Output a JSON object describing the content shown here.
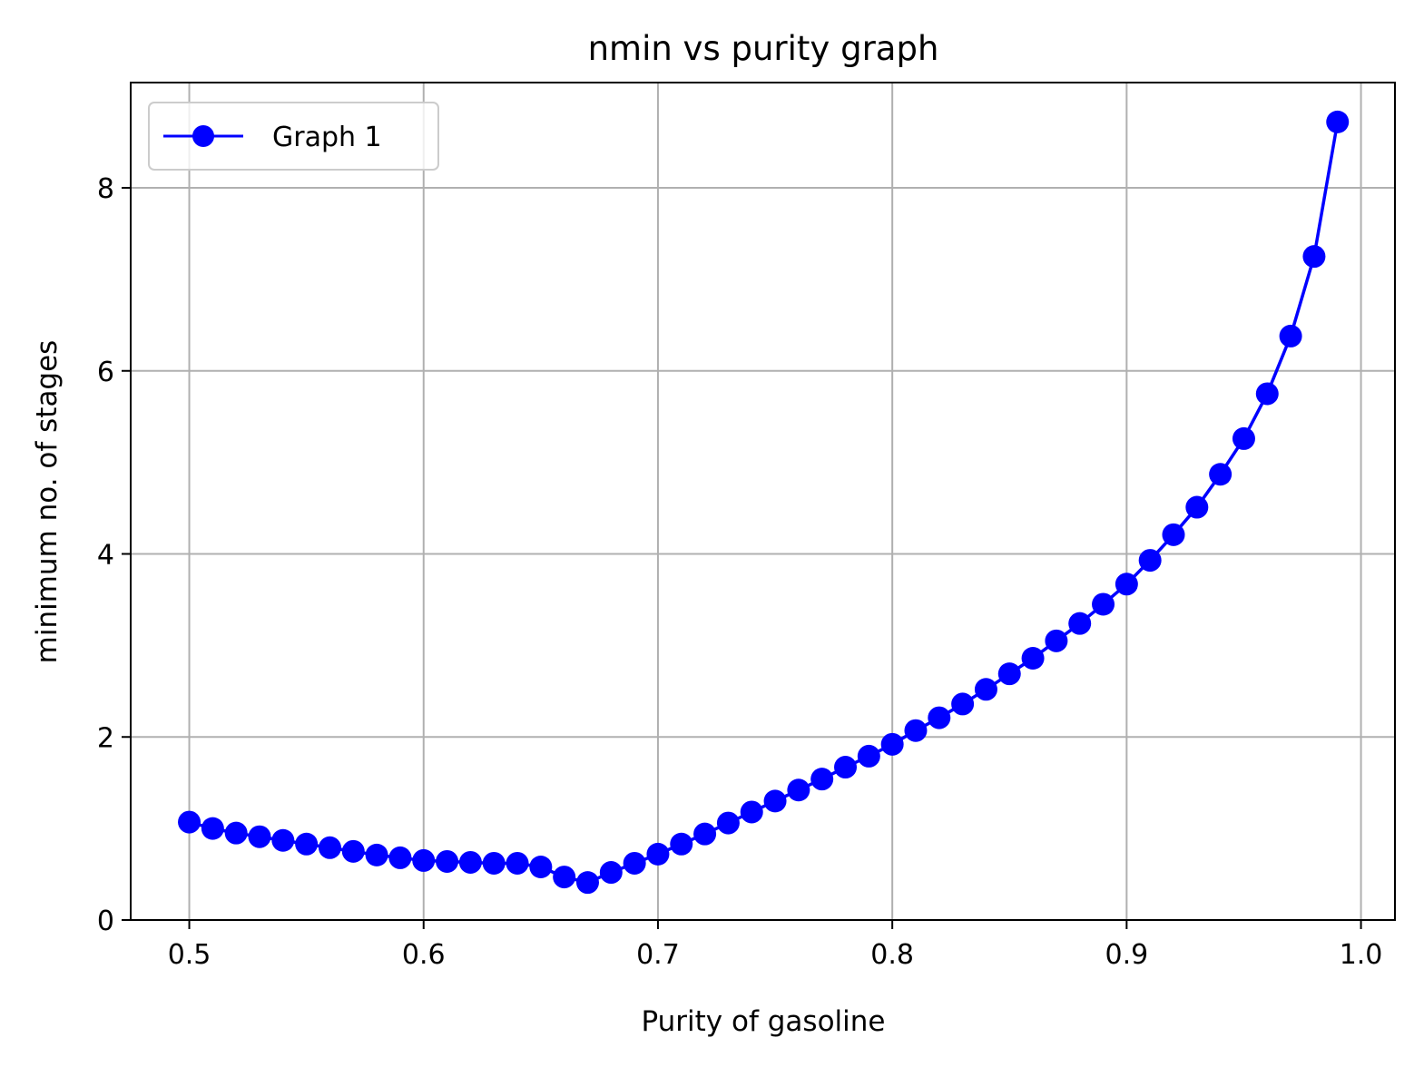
{
  "chart_data": {
    "type": "line",
    "title": "nmin vs purity graph",
    "xlabel": "Purity of gasoline",
    "ylabel": "minimum no. of stages",
    "xlim": [
      0.475,
      1.0145
    ],
    "ylim": [
      0,
      9.15
    ],
    "xticks": [
      0.5,
      0.6,
      0.7,
      0.8,
      0.9,
      1.0
    ],
    "xtick_labels": [
      "0.5",
      "0.6",
      "0.7",
      "0.8",
      "0.9",
      "1.0"
    ],
    "yticks": [
      0,
      2,
      4,
      6,
      8
    ],
    "ytick_labels": [
      "0",
      "2",
      "4",
      "6",
      "8"
    ],
    "grid": true,
    "legend_position": "upper-left",
    "series": [
      {
        "name": "Graph 1",
        "color": "#0000ff",
        "marker": "circle",
        "x": [
          0.5,
          0.51,
          0.52,
          0.53,
          0.54,
          0.55,
          0.56,
          0.57,
          0.58,
          0.59,
          0.6,
          0.61,
          0.62,
          0.63,
          0.64,
          0.65,
          0.66,
          0.67,
          0.68,
          0.69,
          0.7,
          0.71,
          0.72,
          0.73,
          0.74,
          0.75,
          0.76,
          0.77,
          0.78,
          0.79,
          0.8,
          0.81,
          0.82,
          0.83,
          0.84,
          0.85,
          0.86,
          0.87,
          0.88,
          0.89,
          0.9,
          0.91,
          0.92,
          0.93,
          0.94,
          0.95,
          0.96,
          0.97,
          0.98,
          0.99
        ],
        "y": [
          1.07,
          1.0,
          0.95,
          0.91,
          0.87,
          0.83,
          0.79,
          0.75,
          0.71,
          0.68,
          0.65,
          0.64,
          0.63,
          0.62,
          0.62,
          0.58,
          0.47,
          0.41,
          0.52,
          0.62,
          0.72,
          0.83,
          0.94,
          1.06,
          1.18,
          1.3,
          1.42,
          1.54,
          1.67,
          1.79,
          1.92,
          2.07,
          2.21,
          2.36,
          2.52,
          2.69,
          2.86,
          3.05,
          3.24,
          3.45,
          3.67,
          3.93,
          4.21,
          4.51,
          4.87,
          5.26,
          5.75,
          6.38,
          7.25,
          8.72
        ]
      }
    ]
  }
}
